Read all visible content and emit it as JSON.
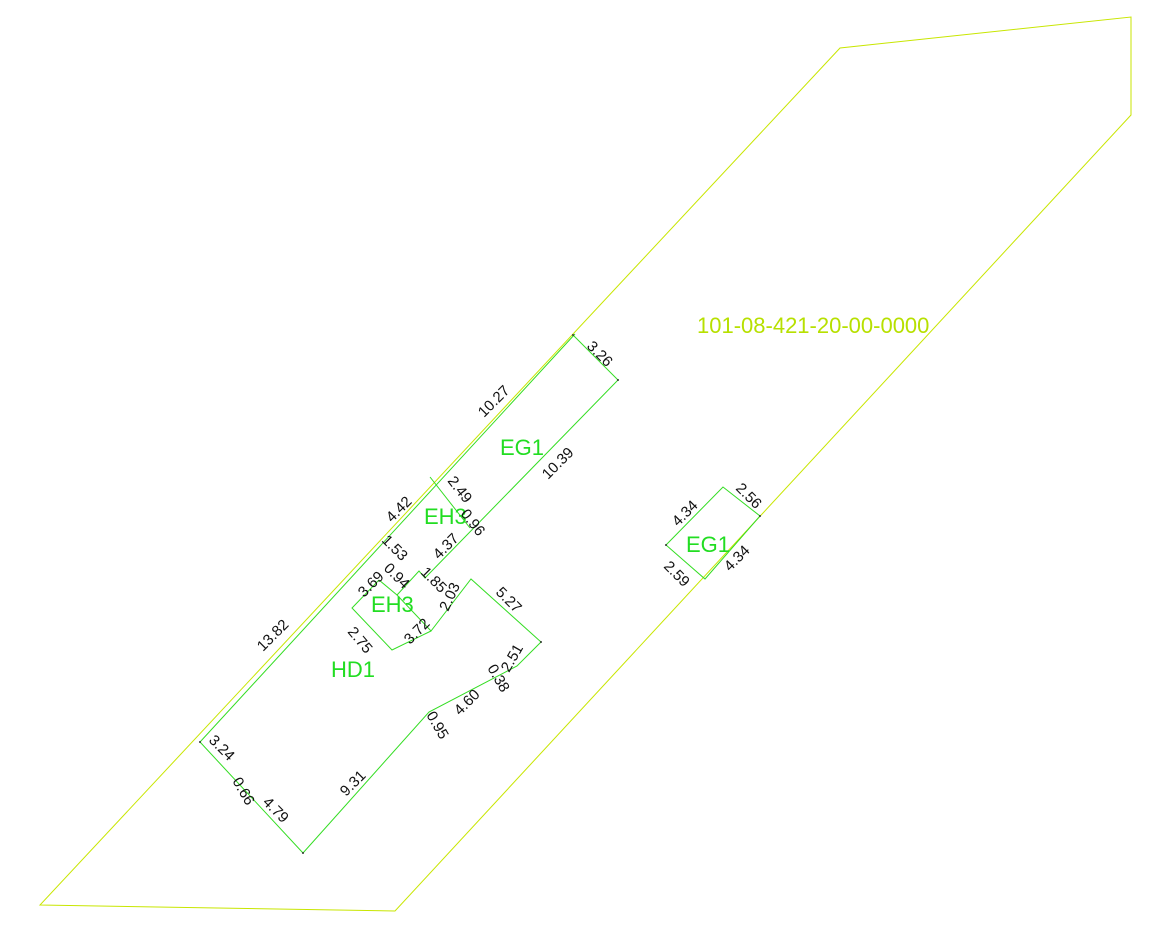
{
  "colors": {
    "parcel_line": "#c8e600",
    "building_line": "#33dd22",
    "building_label": "#22dd22",
    "parcel_label": "#b7e000",
    "dimension_text": "#111111"
  },
  "parcel": {
    "id": "101-08-421-20-00-0000"
  },
  "buildings": {
    "eg1_main": "EG1",
    "eh3_top": "EH3",
    "eh3": "EH3",
    "hd1": "HD1",
    "eg1_small": "EG1"
  },
  "dimensions": {
    "d_3_26": "3.26",
    "d_10_27": "10.27",
    "d_10_39": "10.39",
    "d_4_42": "4.42",
    "d_2_49": "2.49",
    "d_0_96": "0.96",
    "d_1_53": "1.53",
    "d_4_37": "4.37",
    "d_3_69": "3.69",
    "d_0_94": "0.94",
    "d_1_85": "1.85",
    "d_2_03": "2.03",
    "d_5_27": "5.27",
    "d_13_82": "13.82",
    "d_2_75": "2.75",
    "d_3_72": "3.72",
    "d_2_51": "2.51",
    "d_0_38": "0.38",
    "d_4_60": "4.60",
    "d_0_95": "0.95",
    "d_3_24": "3.24",
    "d_0_66": "0.66",
    "d_4_79": "4.79",
    "d_9_31": "9.31",
    "d_4_34_top": "4.34",
    "d_2_56": "2.56",
    "d_2_59": "2.59",
    "d_4_34_right": "4.34"
  }
}
